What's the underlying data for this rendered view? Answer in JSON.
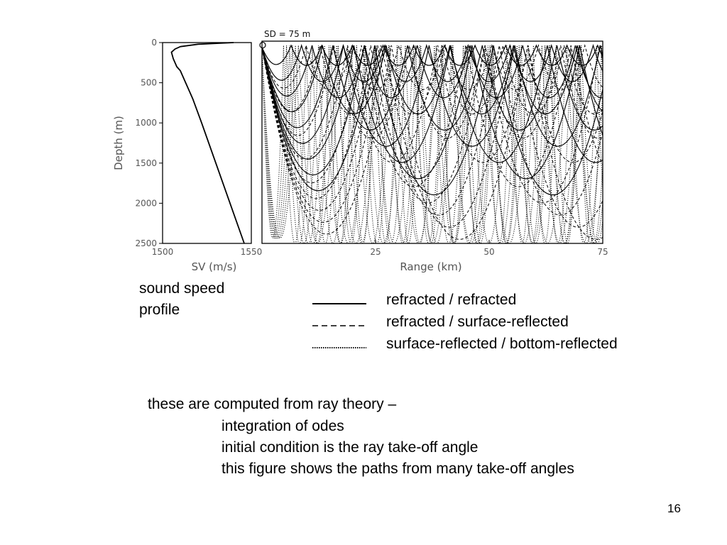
{
  "chart_data": [
    {
      "type": "line",
      "title": "",
      "xlabel": "SV (m/s)",
      "ylabel": "Depth (m)",
      "xlim": [
        1500,
        1550
      ],
      "ylim": [
        2500,
        0
      ],
      "x_ticks": [
        "1500",
        "1550"
      ],
      "y_ticks": [
        "0",
        "500",
        "1000",
        "1500",
        "2000",
        "2500"
      ],
      "series": [
        {
          "name": "",
          "points": [
            [
              1540,
              0
            ],
            [
              1520,
              20
            ],
            [
              1510,
              50
            ],
            [
              1507,
              80
            ],
            [
              1505,
              120
            ],
            [
              1506,
              200
            ],
            [
              1508,
              300
            ],
            [
              1510,
              350
            ],
            [
              1513,
              500
            ],
            [
              1517,
              700
            ],
            [
              1522,
              1000
            ],
            [
              1530,
              1500
            ],
            [
              1538,
              2000
            ],
            [
              1546,
              2500
            ]
          ]
        }
      ]
    },
    {
      "type": "line",
      "title": "SD = 75 m",
      "xlabel": "Range (km)",
      "ylabel": "",
      "xlim": [
        0,
        75
      ],
      "ylim": [
        2500,
        0
      ],
      "x_ticks": [
        "0",
        "25",
        "50",
        "75"
      ],
      "source_depth_m": 75,
      "series": [
        {
          "name": "refracted / refracted",
          "style": "solid",
          "max_depths_m": [
            300,
            500,
            700,
            900,
            1100,
            1300,
            1500,
            1700,
            1900
          ]
        },
        {
          "name": "refracted / surface-reflected",
          "style": "dashed",
          "max_depths_m": [
            600,
            900,
            1200,
            1500,
            1800,
            2000,
            2150,
            2300,
            2450
          ]
        },
        {
          "name": "surface-reflected / bottom-reflected",
          "style": "dotted",
          "max_depths_m": [
            2500,
            2500,
            2500,
            2500,
            2500,
            2500
          ]
        }
      ]
    }
  ],
  "caption": {
    "line1": "sound speed",
    "line2": "profile"
  },
  "legend": [
    {
      "label": "refracted / refracted",
      "style": "solid"
    },
    {
      "label": "refracted / surface-reflected",
      "style": "dashed"
    },
    {
      "label": "surface-reflected / bottom-reflected",
      "style": "dotted"
    }
  ],
  "notes": {
    "line1": "these are computed from ray theory –",
    "line2": "integration of odes",
    "line3": "initial condition is the ray take-off angle",
    "line4": "this figure shows the paths from many take-off angles"
  },
  "slide_number": "16"
}
